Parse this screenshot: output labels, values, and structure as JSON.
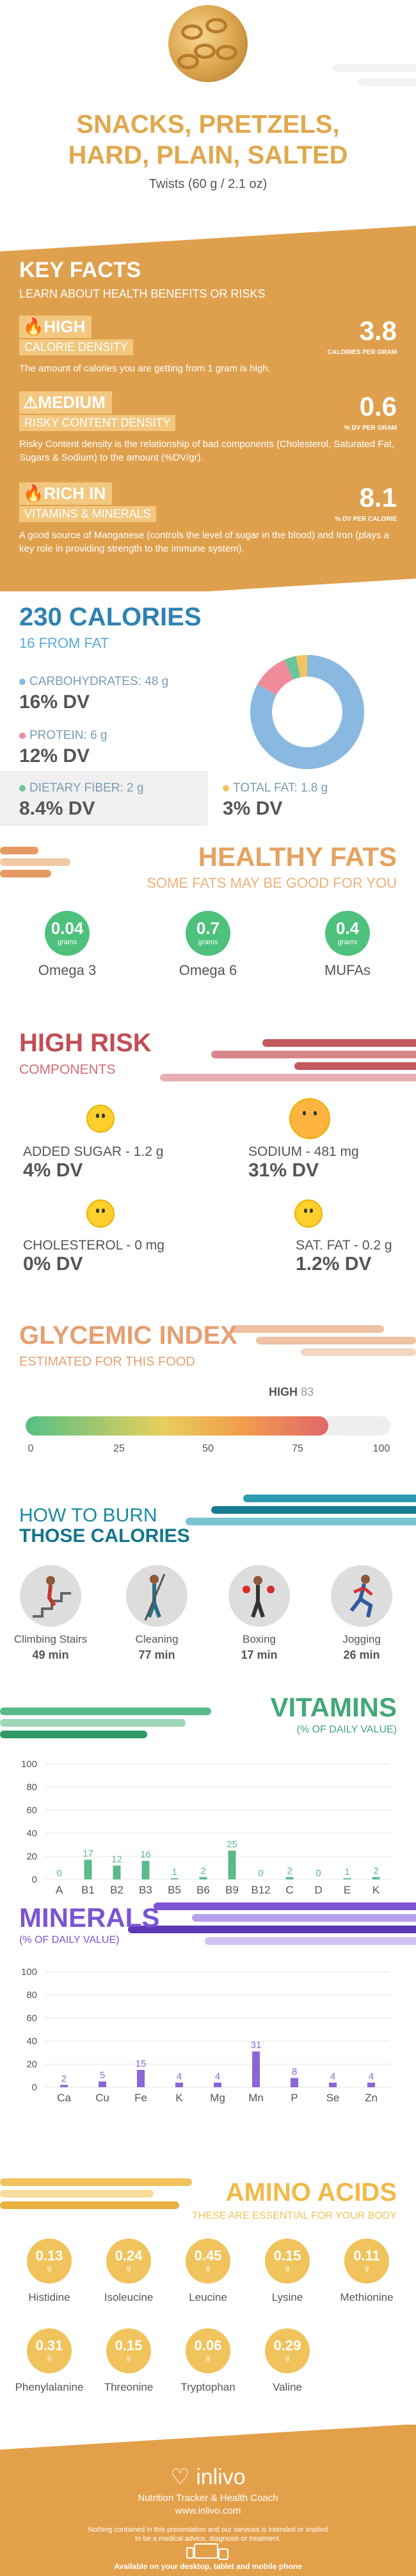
{
  "header": {
    "title_line1": "SNACKS, PRETZELS,",
    "title_line2": "HARD, PLAIN, SALTED",
    "serving": "Twists (60 g / 2.1 oz)"
  },
  "key_facts": {
    "title": "KEY FACTS",
    "subtitle": "LEARN ABOUT HEALTH BENEFITS OR RISKS",
    "items": [
      {
        "level": "HIGH",
        "metric": "CALORIE DENSITY",
        "value": "3.8",
        "unit": "CALORIES PER GRAM",
        "desc": "The amount of calories you are getting from 1 gram is high.",
        "icon": "flame-icon"
      },
      {
        "level": "MEDIUM",
        "metric": "RISKY CONTENT DENSITY",
        "value": "0.6",
        "unit": "% DV PER GRAM",
        "desc": "Risky Content density is the relationship of bad components (Cholesterol, Saturated Fat, Sugars & Sodium) to the amount (%DV/gr).",
        "icon": "warning-icon"
      },
      {
        "level": "RICH  IN",
        "metric": "VITAMINS & MINERALS",
        "value": "8.1",
        "unit": "% DV PER CALORIE",
        "desc": "A good source of Manganese (controls the level of sugar in the blood) and Iron (plays a key role in providing strength to the immune system).",
        "icon": "flame-icon"
      }
    ]
  },
  "calories": {
    "title": "230 CALORIES",
    "subtitle": "16 FROM FAT",
    "macros": [
      {
        "label": "CARBOHYDRATES: 48 g",
        "dv": "16% DV",
        "color": "#89b9e0"
      },
      {
        "label": "PROTEIN: 6 g",
        "dv": "12% DV",
        "color": "#f08c9a"
      },
      {
        "label": "DIETARY FIBER: 2 g",
        "dv": "8.4% DV",
        "color": "#6cc59a"
      },
      {
        "label": "TOTAL FAT: 1.8 g",
        "dv": "3% DV",
        "color": "#f2c35e"
      }
    ],
    "donut": [
      {
        "name": "carbohydrates",
        "value": 48,
        "color": "#89b9e0"
      },
      {
        "name": "protein",
        "value": 6,
        "color": "#f08c9a"
      },
      {
        "name": "fiber",
        "value": 2,
        "color": "#6cc59a"
      },
      {
        "name": "fat",
        "value": 1.8,
        "color": "#f2c35e"
      }
    ]
  },
  "fats": {
    "title": "HEALTHY FATS",
    "subtitle": "SOME FATS MAY BE GOOD FOR YOU",
    "items": [
      {
        "value": "0.04",
        "unit": "grams",
        "label": "Omega 3"
      },
      {
        "value": "0.7",
        "unit": "grams",
        "label": "Omega 6"
      },
      {
        "value": "0.4",
        "unit": "grams",
        "label": "MUFAs"
      }
    ]
  },
  "risk": {
    "title": "HIGH RISK",
    "subtitle": "COMPONENTS",
    "items": [
      {
        "label": "ADDED SUGAR - 1.2 g",
        "dv": "4% DV",
        "icon": "smiley-icon"
      },
      {
        "label": "SODIUM - 481 mg",
        "dv": "31% DV",
        "icon": "sad-face-icon"
      },
      {
        "label": "CHOLESTEROL - 0 mg",
        "dv": "0% DV",
        "icon": "grin-icon"
      },
      {
        "label": "SAT. FAT - 0.2 g",
        "dv": "1.2% DV",
        "icon": "smiley-icon"
      }
    ]
  },
  "glycemic": {
    "title": "GLYCEMIC INDEX",
    "subtitle": "ESTIMATED FOR THIS FOOD",
    "level": "HIGH",
    "value": 83,
    "value_text": "83",
    "ticks": [
      "0",
      "25",
      "50",
      "75",
      "100"
    ]
  },
  "burn": {
    "title1": "HOW TO BURN",
    "title2": "THOSE CALORIES",
    "items": [
      {
        "label": "Climbing Stairs",
        "min": "49 min",
        "icon": "stairs-icon"
      },
      {
        "label": "Cleaning",
        "min": "77 min",
        "icon": "mop-icon"
      },
      {
        "label": "Boxing",
        "min": "17 min",
        "icon": "boxing-icon"
      },
      {
        "label": "Jogging",
        "min": "26 min",
        "icon": "jogging-icon"
      }
    ]
  },
  "vitamins": {
    "title": "VITAMINS",
    "subtitle": "(% OF DAILY VALUE)",
    "color": "#5aba8a"
  },
  "minerals": {
    "title": "MINERALS",
    "subtitle": "(% OF DAILY VALUE)",
    "color": "#8a66d6"
  },
  "chart_data": [
    {
      "type": "bar",
      "title": "VITAMINS",
      "categories": [
        "A",
        "B1",
        "B2",
        "B3",
        "B5",
        "B6",
        "B9",
        "B12",
        "C",
        "D",
        "E",
        "K"
      ],
      "values": [
        0,
        17,
        12,
        16,
        1,
        2,
        25,
        0,
        2,
        0,
        1,
        2
      ],
      "ylim": [
        0,
        100
      ],
      "yticks": [
        0,
        20,
        40,
        60,
        80,
        100
      ]
    },
    {
      "type": "bar",
      "title": "MINERALS",
      "categories": [
        "Ca",
        "Cu",
        "Fe",
        "K",
        "Mg",
        "Mn",
        "P",
        "Se",
        "Zn"
      ],
      "values": [
        2,
        5,
        15,
        4,
        4,
        31,
        8,
        4,
        4
      ],
      "ylim": [
        0,
        100
      ],
      "yticks": [
        0,
        20,
        40,
        60,
        80,
        100
      ]
    }
  ],
  "amino": {
    "title": "AMINO ACIDS",
    "subtitle": "THESE ARE ESSENTIAL FOR YOUR BODY",
    "unit": "g",
    "items": [
      {
        "value": "0.13",
        "label": "Histidine"
      },
      {
        "value": "0.24",
        "label": "Isoleucine"
      },
      {
        "value": "0.45",
        "label": "Leucine"
      },
      {
        "value": "0.15",
        "label": "Lysine"
      },
      {
        "value": "0.11",
        "label": "Methionine"
      },
      {
        "value": "0.31",
        "label": "Phenylalanine"
      },
      {
        "value": "0.15",
        "label": "Threonine"
      },
      {
        "value": "0.06",
        "label": "Tryptophan"
      },
      {
        "value": "0.29",
        "label": "Valine"
      }
    ]
  },
  "footer": {
    "brand": "inlivo",
    "tagline": "Nutrition Tracker & Health Coach",
    "url": "www.inlivo.com",
    "disclaimer1": "Nothing contained in this presentation and our services is intended or implied",
    "disclaimer2": "to be a medical advice, diagnosis or treatment.",
    "available": "Available on your desktop, tablet and mobile phone"
  }
}
